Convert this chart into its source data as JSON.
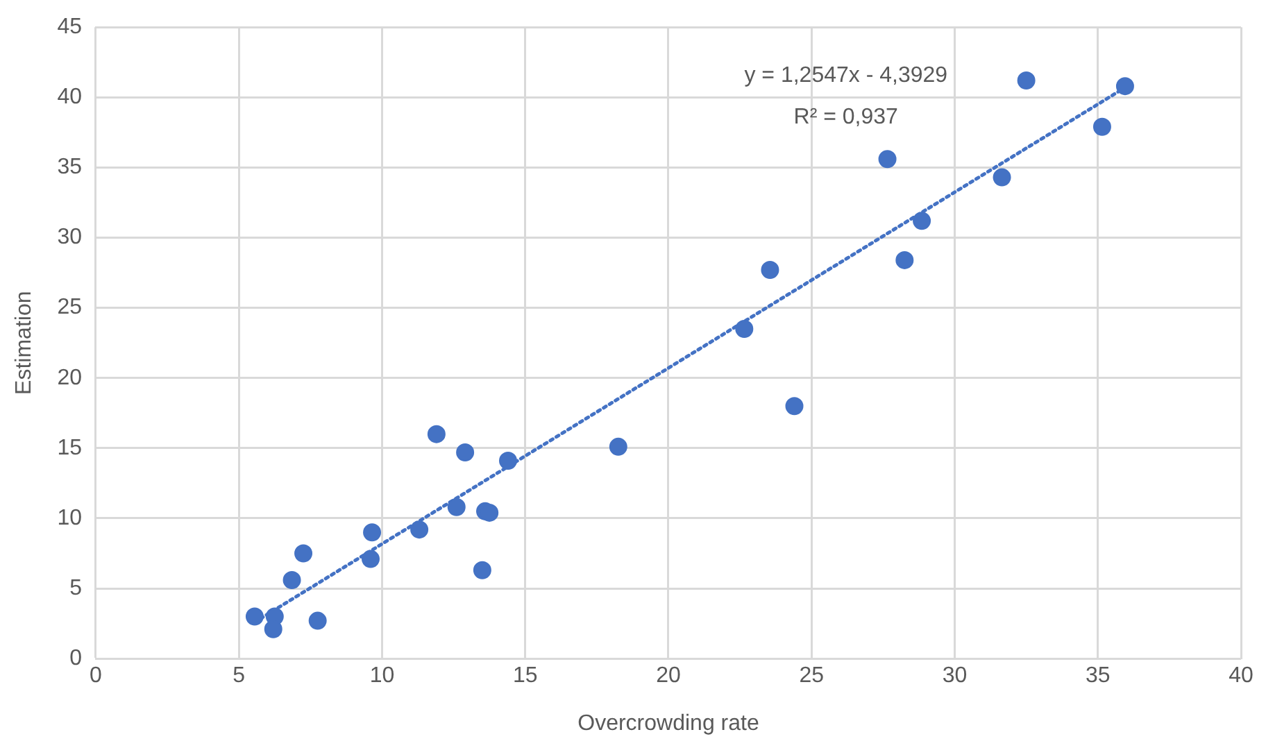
{
  "chart_data": {
    "type": "scatter",
    "xlabel": "Overcrowding rate",
    "ylabel": "Estimation",
    "xlim": [
      0,
      40
    ],
    "xticks": [
      0,
      5,
      10,
      15,
      20,
      25,
      30,
      35,
      40
    ],
    "ylim": [
      0,
      45
    ],
    "yticks": [
      0,
      5,
      10,
      15,
      20,
      25,
      30,
      35,
      40,
      45
    ],
    "grid": true,
    "legend": false,
    "marker": "circle",
    "annotations": [
      "y = 1,2547x - 4,3929",
      "R² = 0,937"
    ],
    "series": [
      {
        "color": "#4472c4",
        "x": [
          5.55,
          6.25,
          6.2,
          6.85,
          7.25,
          7.75,
          9.6,
          9.65,
          11.3,
          11.9,
          12.6,
          12.9,
          13.5,
          13.6,
          13.75,
          14.4,
          18.25,
          22.65,
          23.55,
          24.4,
          27.65,
          28.25,
          28.85,
          31.65,
          32.5,
          35.15,
          35.95
        ],
        "values": [
          3.0,
          3.0,
          2.1,
          5.6,
          7.5,
          2.7,
          7.1,
          9.0,
          9.2,
          16.0,
          10.8,
          14.7,
          6.3,
          10.5,
          10.4,
          14.1,
          15.1,
          23.5,
          27.7,
          18.0,
          35.6,
          28.4,
          31.2,
          34.3,
          41.2,
          37.9,
          40.8
        ]
      },
      {
        "type": "line",
        "color": "#4472c4",
        "marker": "none",
        "line_style": "dotted",
        "x": [
          5.55,
          35.95
        ],
        "values": [
          2.6,
          40.7
        ]
      }
    ]
  }
}
